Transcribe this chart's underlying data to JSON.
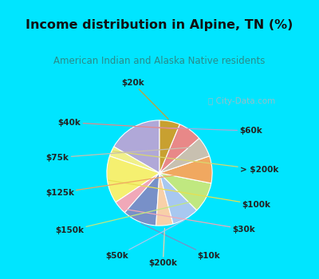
{
  "title": "Income distribution in Alpine, TN (%)",
  "subtitle": "American Indian and Alaska Native residents",
  "watermark": "ⓘ City-Data.com",
  "labels": [
    "$60k",
    "> $200k",
    "$100k",
    "$30k",
    "$10k",
    "$200k",
    "$50k",
    "$150k",
    "$125k",
    "$75k",
    "$40k",
    "$20k"
  ],
  "values": [
    16,
    3,
    14,
    4,
    10,
    5,
    8,
    9,
    8,
    6,
    7,
    6
  ],
  "colors": [
    "#b0a8d8",
    "#f0f08a",
    "#f5f070",
    "#f0a8b8",
    "#7890c8",
    "#f8d0a8",
    "#a8c8f0",
    "#c0e880",
    "#f0a860",
    "#c8c0b0",
    "#e88888",
    "#c8a030"
  ],
  "background_cyan": "#00e5ff",
  "background_chart": "#d8f0e8",
  "title_color": "#111111",
  "subtitle_color": "#2a8a8a",
  "label_colors": [
    "#b0a8d8",
    "#d8d870",
    "#e8e050",
    "#f0a8b8",
    "#7890c8",
    "#f8d0a8",
    "#a8c8f0",
    "#c0e880",
    "#f0a860",
    "#c8c0b0",
    "#e88888",
    "#c8a030"
  ]
}
